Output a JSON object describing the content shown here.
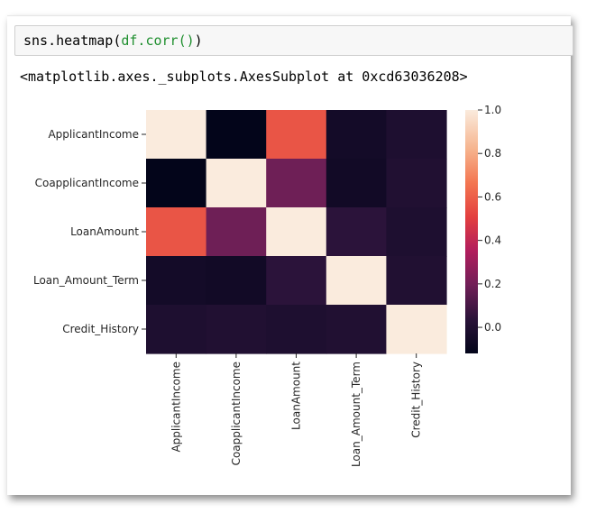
{
  "code_cell": {
    "code_prefix": "sns.heatmap(",
    "code_arg": "df.corr()",
    "code_suffix": ")"
  },
  "output": {
    "text": "<matplotlib.axes._subplots.AxesSubplot at 0xcd63036208>"
  },
  "chart_data": {
    "type": "heatmap",
    "row_labels": [
      "ApplicantIncome",
      "CoapplicantIncome",
      "LoanAmount",
      "Loan_Amount_Term",
      "Credit_History"
    ],
    "col_labels": [
      "ApplicantIncome",
      "CoapplicantIncome",
      "LoanAmount",
      "Loan_Amount_Term",
      "Credit_History"
    ],
    "values": [
      [
        1.0,
        -0.12,
        0.57,
        -0.05,
        -0.01
      ],
      [
        -0.12,
        1.0,
        0.19,
        -0.06,
        0.0
      ],
      [
        0.57,
        0.19,
        1.0,
        0.04,
        -0.01
      ],
      [
        -0.05,
        -0.06,
        0.04,
        1.0,
        0.0
      ],
      [
        -0.01,
        0.0,
        -0.01,
        0.0,
        1.0
      ]
    ],
    "colorbar": {
      "vmin": -0.12,
      "vmax": 1.0,
      "ticks": [
        0.0,
        0.2,
        0.4,
        0.6,
        0.8,
        1.0
      ],
      "tick_labels": [
        "0.0",
        "0.2",
        "0.4",
        "0.6",
        "0.8",
        "1.0"
      ],
      "colormap": "rocket"
    }
  }
}
